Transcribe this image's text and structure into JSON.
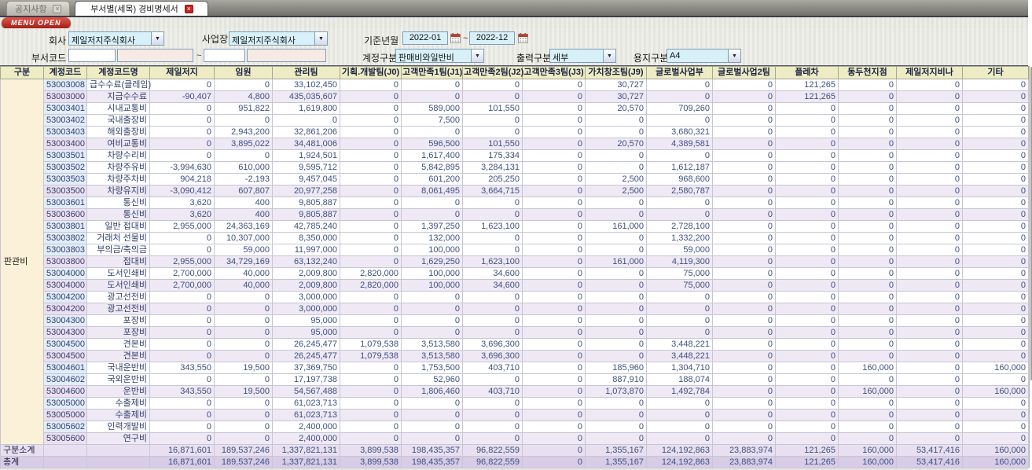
{
  "tabs": [
    {
      "label": "공지사항",
      "active": false
    },
    {
      "label": "부서별(세목) 경비명세서",
      "active": true
    }
  ],
  "menu_button": "MENU OPEN",
  "filters": {
    "company_label": "회사",
    "company_value": "제일저지주식회사",
    "site_label": "사업장",
    "site_value": "제일저지주식회사",
    "period_label": "기준년월",
    "period_from": "2022-01",
    "period_to": "2022-12",
    "tilde": "~",
    "dept_label": "부서코드",
    "account_label": "계정구분",
    "account_value": "판매비와일반비",
    "output_label": "출력구분",
    "output_value": "세부",
    "paper_label": "용지구분",
    "paper_value": "A4"
  },
  "table": {
    "columns": [
      "구분",
      "계정코드",
      "계정코드명",
      "제일저지",
      "임원",
      "관리팀",
      "기획.개발팀(J0)",
      "고객만족1팀(J1)",
      "고객만족2팀(J2)",
      "고객만족3팀(J3)",
      "가치창조팀(J9)",
      "글로벌사업부",
      "글로벌사업2팀",
      "플레차",
      "동두천지점",
      "제일저지비나",
      "기타"
    ],
    "group_label": "판관비",
    "rows": [
      {
        "code": "53003008",
        "name": "급수수료(클레임)",
        "summary": false,
        "values": [
          "0",
          "0",
          "33,102,450",
          "0",
          "0",
          "0",
          "0",
          "30,727",
          "0",
          "0",
          "121,265",
          "0",
          "0",
          "0"
        ]
      },
      {
        "code": "53003000",
        "name": "지급수수료",
        "summary": true,
        "values": [
          "-90,407",
          "4,800",
          "435,035,607",
          "0",
          "0",
          "0",
          "0",
          "30,727",
          "0",
          "0",
          "121,265",
          "0",
          "0",
          "0"
        ]
      },
      {
        "code": "53003401",
        "name": "시내교통비",
        "summary": false,
        "values": [
          "0",
          "951,822",
          "1,619,800",
          "0",
          "589,000",
          "101,550",
          "0",
          "20,570",
          "709,260",
          "0",
          "0",
          "0",
          "0",
          "0"
        ]
      },
      {
        "code": "53003402",
        "name": "국내출장비",
        "summary": false,
        "values": [
          "0",
          "0",
          "0",
          "0",
          "7,500",
          "0",
          "0",
          "0",
          "0",
          "0",
          "0",
          "0",
          "0",
          "0"
        ]
      },
      {
        "code": "53003403",
        "name": "해외출장비",
        "summary": false,
        "values": [
          "0",
          "2,943,200",
          "32,861,206",
          "0",
          "0",
          "0",
          "0",
          "0",
          "3,680,321",
          "0",
          "0",
          "0",
          "0",
          "0"
        ]
      },
      {
        "code": "53003400",
        "name": "여비교통비",
        "summary": true,
        "values": [
          "0",
          "3,895,022",
          "34,481,006",
          "0",
          "596,500",
          "101,550",
          "0",
          "20,570",
          "4,389,581",
          "0",
          "0",
          "0",
          "0",
          "0"
        ]
      },
      {
        "code": "53003501",
        "name": "차량수리비",
        "summary": false,
        "values": [
          "0",
          "0",
          "1,924,501",
          "0",
          "1,617,400",
          "175,334",
          "0",
          "0",
          "0",
          "0",
          "0",
          "0",
          "0",
          "0"
        ]
      },
      {
        "code": "53003502",
        "name": "차량주유비",
        "summary": false,
        "values": [
          "-3,994,630",
          "610,000",
          "9,595,712",
          "0",
          "5,842,895",
          "3,284,131",
          "0",
          "0",
          "1,612,187",
          "0",
          "0",
          "0",
          "0",
          "0"
        ]
      },
      {
        "code": "53003503",
        "name": "차량주차비",
        "summary": false,
        "values": [
          "904,218",
          "-2,193",
          "9,457,045",
          "0",
          "601,200",
          "205,250",
          "0",
          "2,500",
          "968,600",
          "0",
          "0",
          "0",
          "0",
          "0"
        ]
      },
      {
        "code": "53003500",
        "name": "차량유지비",
        "summary": true,
        "values": [
          "-3,090,412",
          "607,807",
          "20,977,258",
          "0",
          "8,061,495",
          "3,664,715",
          "0",
          "2,500",
          "2,580,787",
          "0",
          "0",
          "0",
          "0",
          "0"
        ]
      },
      {
        "code": "53003601",
        "name": "통신비",
        "summary": false,
        "values": [
          "3,620",
          "400",
          "9,805,887",
          "0",
          "0",
          "0",
          "0",
          "0",
          "0",
          "0",
          "0",
          "0",
          "0",
          "0"
        ]
      },
      {
        "code": "53003600",
        "name": "통신비",
        "summary": true,
        "values": [
          "3,620",
          "400",
          "9,805,887",
          "0",
          "0",
          "0",
          "0",
          "0",
          "0",
          "0",
          "0",
          "0",
          "0",
          "0"
        ]
      },
      {
        "code": "53003801",
        "name": "일반 접대비",
        "summary": false,
        "values": [
          "2,955,000",
          "24,363,169",
          "42,785,240",
          "0",
          "1,397,250",
          "1,623,100",
          "0",
          "161,000",
          "2,728,100",
          "0",
          "0",
          "0",
          "0",
          "0"
        ]
      },
      {
        "code": "53003802",
        "name": "거래처 선물비",
        "summary": false,
        "values": [
          "0",
          "10,307,000",
          "8,350,000",
          "0",
          "132,000",
          "0",
          "0",
          "0",
          "1,332,200",
          "0",
          "0",
          "0",
          "0",
          "0"
        ]
      },
      {
        "code": "53003803",
        "name": "부의금/축의금",
        "summary": false,
        "values": [
          "0",
          "59,000",
          "11,997,000",
          "0",
          "100,000",
          "0",
          "0",
          "0",
          "59,000",
          "0",
          "0",
          "0",
          "0",
          "0"
        ]
      },
      {
        "code": "53003800",
        "name": "접대비",
        "summary": true,
        "values": [
          "2,955,000",
          "34,729,169",
          "63,132,240",
          "0",
          "1,629,250",
          "1,623,100",
          "0",
          "161,000",
          "4,119,300",
          "0",
          "0",
          "0",
          "0",
          "0"
        ]
      },
      {
        "code": "53004000",
        "name": "도서인쇄비",
        "summary": false,
        "values": [
          "2,700,000",
          "40,000",
          "2,009,800",
          "2,820,000",
          "100,000",
          "34,600",
          "0",
          "0",
          "75,000",
          "0",
          "0",
          "0",
          "0",
          "0"
        ]
      },
      {
        "code": "53004000",
        "name": "도서인쇄비",
        "summary": true,
        "values": [
          "2,700,000",
          "40,000",
          "2,009,800",
          "2,820,000",
          "100,000",
          "34,600",
          "0",
          "0",
          "75,000",
          "0",
          "0",
          "0",
          "0",
          "0"
        ]
      },
      {
        "code": "53004200",
        "name": "광고선전비",
        "summary": false,
        "values": [
          "0",
          "0",
          "3,000,000",
          "0",
          "0",
          "0",
          "0",
          "0",
          "0",
          "0",
          "0",
          "0",
          "0",
          "0"
        ]
      },
      {
        "code": "53004200",
        "name": "광고선전비",
        "summary": true,
        "values": [
          "0",
          "0",
          "3,000,000",
          "0",
          "0",
          "0",
          "0",
          "0",
          "0",
          "0",
          "0",
          "0",
          "0",
          "0"
        ]
      },
      {
        "code": "53004300",
        "name": "포장비",
        "summary": false,
        "values": [
          "0",
          "0",
          "95,000",
          "0",
          "0",
          "0",
          "0",
          "0",
          "0",
          "0",
          "0",
          "0",
          "0",
          "0"
        ]
      },
      {
        "code": "53004300",
        "name": "포장비",
        "summary": true,
        "values": [
          "0",
          "0",
          "95,000",
          "0",
          "0",
          "0",
          "0",
          "0",
          "0",
          "0",
          "0",
          "0",
          "0",
          "0"
        ]
      },
      {
        "code": "53004500",
        "name": "견본비",
        "summary": false,
        "values": [
          "0",
          "0",
          "26,245,477",
          "1,079,538",
          "3,513,580",
          "3,696,300",
          "0",
          "0",
          "3,448,221",
          "0",
          "0",
          "0",
          "0",
          "0"
        ]
      },
      {
        "code": "53004500",
        "name": "견본비",
        "summary": true,
        "values": [
          "0",
          "0",
          "26,245,477",
          "1,079,538",
          "3,513,580",
          "3,696,300",
          "0",
          "0",
          "3,448,221",
          "0",
          "0",
          "0",
          "0",
          "0"
        ]
      },
      {
        "code": "53004601",
        "name": "국내운반비",
        "summary": false,
        "values": [
          "343,550",
          "19,500",
          "37,369,750",
          "0",
          "1,753,500",
          "403,710",
          "0",
          "185,960",
          "1,304,710",
          "0",
          "0",
          "160,000",
          "0",
          "160,000"
        ]
      },
      {
        "code": "53004602",
        "name": "국외운반비",
        "summary": false,
        "values": [
          "0",
          "0",
          "17,197,738",
          "0",
          "52,960",
          "0",
          "0",
          "887,910",
          "188,074",
          "0",
          "0",
          "0",
          "0",
          "0"
        ]
      },
      {
        "code": "53004600",
        "name": "운반비",
        "summary": true,
        "values": [
          "343,550",
          "19,500",
          "54,567,488",
          "0",
          "1,806,460",
          "403,710",
          "0",
          "1,073,870",
          "1,492,784",
          "0",
          "0",
          "160,000",
          "0",
          "160,000"
        ]
      },
      {
        "code": "53005000",
        "name": "수출제비",
        "summary": false,
        "values": [
          "0",
          "0",
          "61,023,713",
          "0",
          "0",
          "0",
          "0",
          "0",
          "0",
          "0",
          "0",
          "0",
          "0",
          "0"
        ]
      },
      {
        "code": "53005000",
        "name": "수출제비",
        "summary": true,
        "values": [
          "0",
          "0",
          "61,023,713",
          "0",
          "0",
          "0",
          "0",
          "0",
          "0",
          "0",
          "0",
          "0",
          "0",
          "0"
        ]
      },
      {
        "code": "53005602",
        "name": "인력개발비",
        "summary": false,
        "values": [
          "0",
          "0",
          "2,400,000",
          "0",
          "0",
          "0",
          "0",
          "0",
          "0",
          "0",
          "0",
          "0",
          "0",
          "0"
        ]
      },
      {
        "code": "53005600",
        "name": "연구비",
        "summary": true,
        "values": [
          "0",
          "0",
          "2,400,000",
          "0",
          "0",
          "0",
          "0",
          "0",
          "0",
          "0",
          "0",
          "0",
          "0",
          "0"
        ]
      }
    ],
    "subtotal": {
      "label": "구분소계",
      "values": [
        "16,871,601",
        "189,537,246",
        "1,337,821,131",
        "3,899,538",
        "198,435,357",
        "96,822,559",
        "0",
        "1,355,167",
        "124,192,863",
        "23,883,974",
        "121,265",
        "160,000",
        "53,417,416",
        "160,000"
      ]
    },
    "total": {
      "label": "총계",
      "values": [
        "16,871,601",
        "189,537,246",
        "1,337,821,131",
        "3,899,538",
        "198,435,357",
        "96,822,559",
        "0",
        "1,355,167",
        "124,192,863",
        "23,883,974",
        "121,265",
        "160,000",
        "53,417,416",
        "160,000"
      ]
    }
  },
  "colors": {
    "accent_red": "#cc2222",
    "header_bg": "#edecc4",
    "group_bg": "#fbf0d8",
    "summary_bg": "#efe8f5",
    "total_bg": "#d8cce6"
  }
}
